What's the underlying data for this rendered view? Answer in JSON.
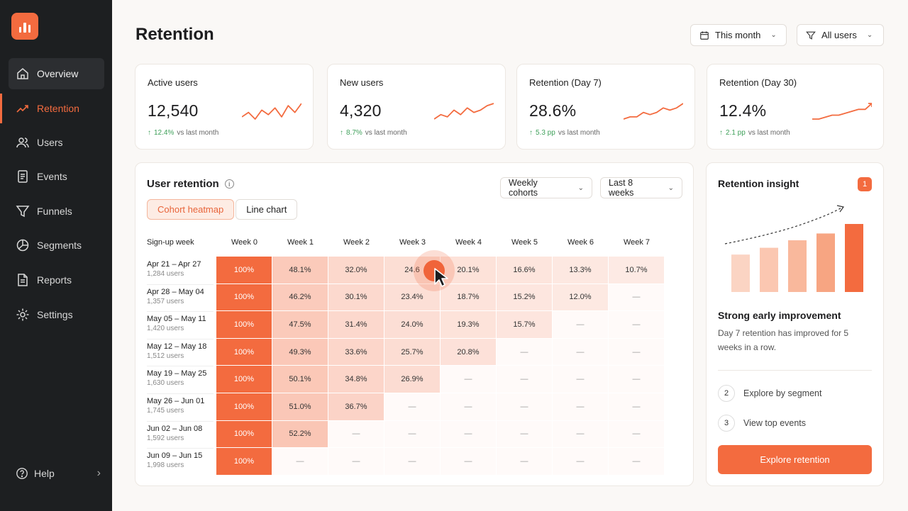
{
  "sidebar": {
    "items": [
      {
        "label": "Overview",
        "icon": "home-icon"
      },
      {
        "label": "Retention",
        "icon": "trend-icon"
      },
      {
        "label": "Users",
        "icon": "users-icon"
      },
      {
        "label": "Events",
        "icon": "events-icon"
      },
      {
        "label": "Funnels",
        "icon": "funnel-icon"
      },
      {
        "label": "Segments",
        "icon": "pie-icon"
      },
      {
        "label": "Reports",
        "icon": "report-icon"
      },
      {
        "label": "Settings",
        "icon": "gear-icon"
      }
    ],
    "help_label": "Help"
  },
  "header": {
    "title": "Retention",
    "date_filter": "This month",
    "user_filter": "All users"
  },
  "kpis": [
    {
      "label": "Active users",
      "value": "12,540",
      "delta": "12.4%",
      "delta_suffix": "vs last month",
      "trend": [
        4,
        6,
        3,
        7,
        5,
        8,
        4,
        9,
        6,
        10
      ]
    },
    {
      "label": "New users",
      "value": "4,320",
      "delta": "8.7%",
      "delta_suffix": "vs last month",
      "trend": [
        3,
        5,
        4,
        7,
        5,
        8,
        6,
        7,
        9,
        10
      ]
    },
    {
      "label": "Retention (Day 7)",
      "value": "28.6%",
      "delta": "5.3 pp",
      "delta_suffix": "vs last month",
      "trend": [
        3,
        4,
        4,
        6,
        5,
        6,
        8,
        7,
        8,
        10
      ]
    },
    {
      "label": "Retention (Day 30)",
      "value": "12.4%",
      "delta": "2.1 pp",
      "delta_suffix": "vs last month",
      "trend": [
        3,
        3,
        4,
        5,
        5,
        6,
        7,
        8,
        8,
        11
      ]
    }
  ],
  "retention": {
    "title": "User retention",
    "tabs": [
      "Cohort heatmap",
      "Line chart"
    ],
    "cohort_dropdown": "Weekly cohorts",
    "range_dropdown": "Last 8 weeks",
    "column_header_first": "Sign-up week",
    "weeks": [
      "Week 0",
      "Week 1",
      "Week 2",
      "Week 3",
      "Week 4",
      "Week 5",
      "Week 6",
      "Week 7"
    ],
    "rows": [
      {
        "week": "Apr 21 – Apr 27",
        "users": "1,284 users",
        "cells": [
          "100%",
          "48.1%",
          "32.0%",
          "24.6",
          "20.1%",
          "16.6%",
          "13.3%",
          "10.7%"
        ]
      },
      {
        "week": "Apr 28 – May 04",
        "users": "1,357 users",
        "cells": [
          "100%",
          "46.2%",
          "30.1%",
          "23.4%",
          "18.7%",
          "15.2%",
          "12.0%",
          "—"
        ]
      },
      {
        "week": "May 05 – May 11",
        "users": "1,420 users",
        "cells": [
          "100%",
          "47.5%",
          "31.4%",
          "24.0%",
          "19.3%",
          "15.7%",
          "—",
          "—"
        ]
      },
      {
        "week": "May 12 – May 18",
        "users": "1,512 users",
        "cells": [
          "100%",
          "49.3%",
          "33.6%",
          "25.7%",
          "20.8%",
          "—",
          "—",
          "—"
        ]
      },
      {
        "week": "May 19 – May 25",
        "users": "1,630 users",
        "cells": [
          "100%",
          "50.1%",
          "34.8%",
          "26.9%",
          "—",
          "—",
          "—",
          "—"
        ]
      },
      {
        "week": "May 26 – Jun 01",
        "users": "1,745 users",
        "cells": [
          "100%",
          "51.0%",
          "36.7%",
          "—",
          "—",
          "—",
          "—",
          "—"
        ]
      },
      {
        "week": "Jun 02 – Jun 08",
        "users": "1,592 users",
        "cells": [
          "100%",
          "52.2%",
          "—",
          "—",
          "—",
          "—",
          "—",
          "—"
        ]
      },
      {
        "week": "Jun 09 – Jun 15",
        "users": "1,998 users",
        "cells": [
          "100%",
          "—",
          "—",
          "—",
          "—",
          "—",
          "—",
          "—"
        ]
      }
    ]
  },
  "insight": {
    "title": "Retention insight",
    "badge": "1",
    "chart_bars": [
      0.55,
      0.65,
      0.76,
      0.86,
      1.0
    ],
    "headline": "Strong early improvement",
    "body": "Day 7 retention has improved for 5 weeks in a row.",
    "steps": [
      {
        "num": "2",
        "label": "Explore by segment"
      },
      {
        "num": "3",
        "label": "View top events"
      }
    ],
    "cta": "Explore retention"
  },
  "colors": {
    "accent": "#f36b3f",
    "sidebar_bg": "#1d1f21",
    "positive": "#3fa05a"
  }
}
